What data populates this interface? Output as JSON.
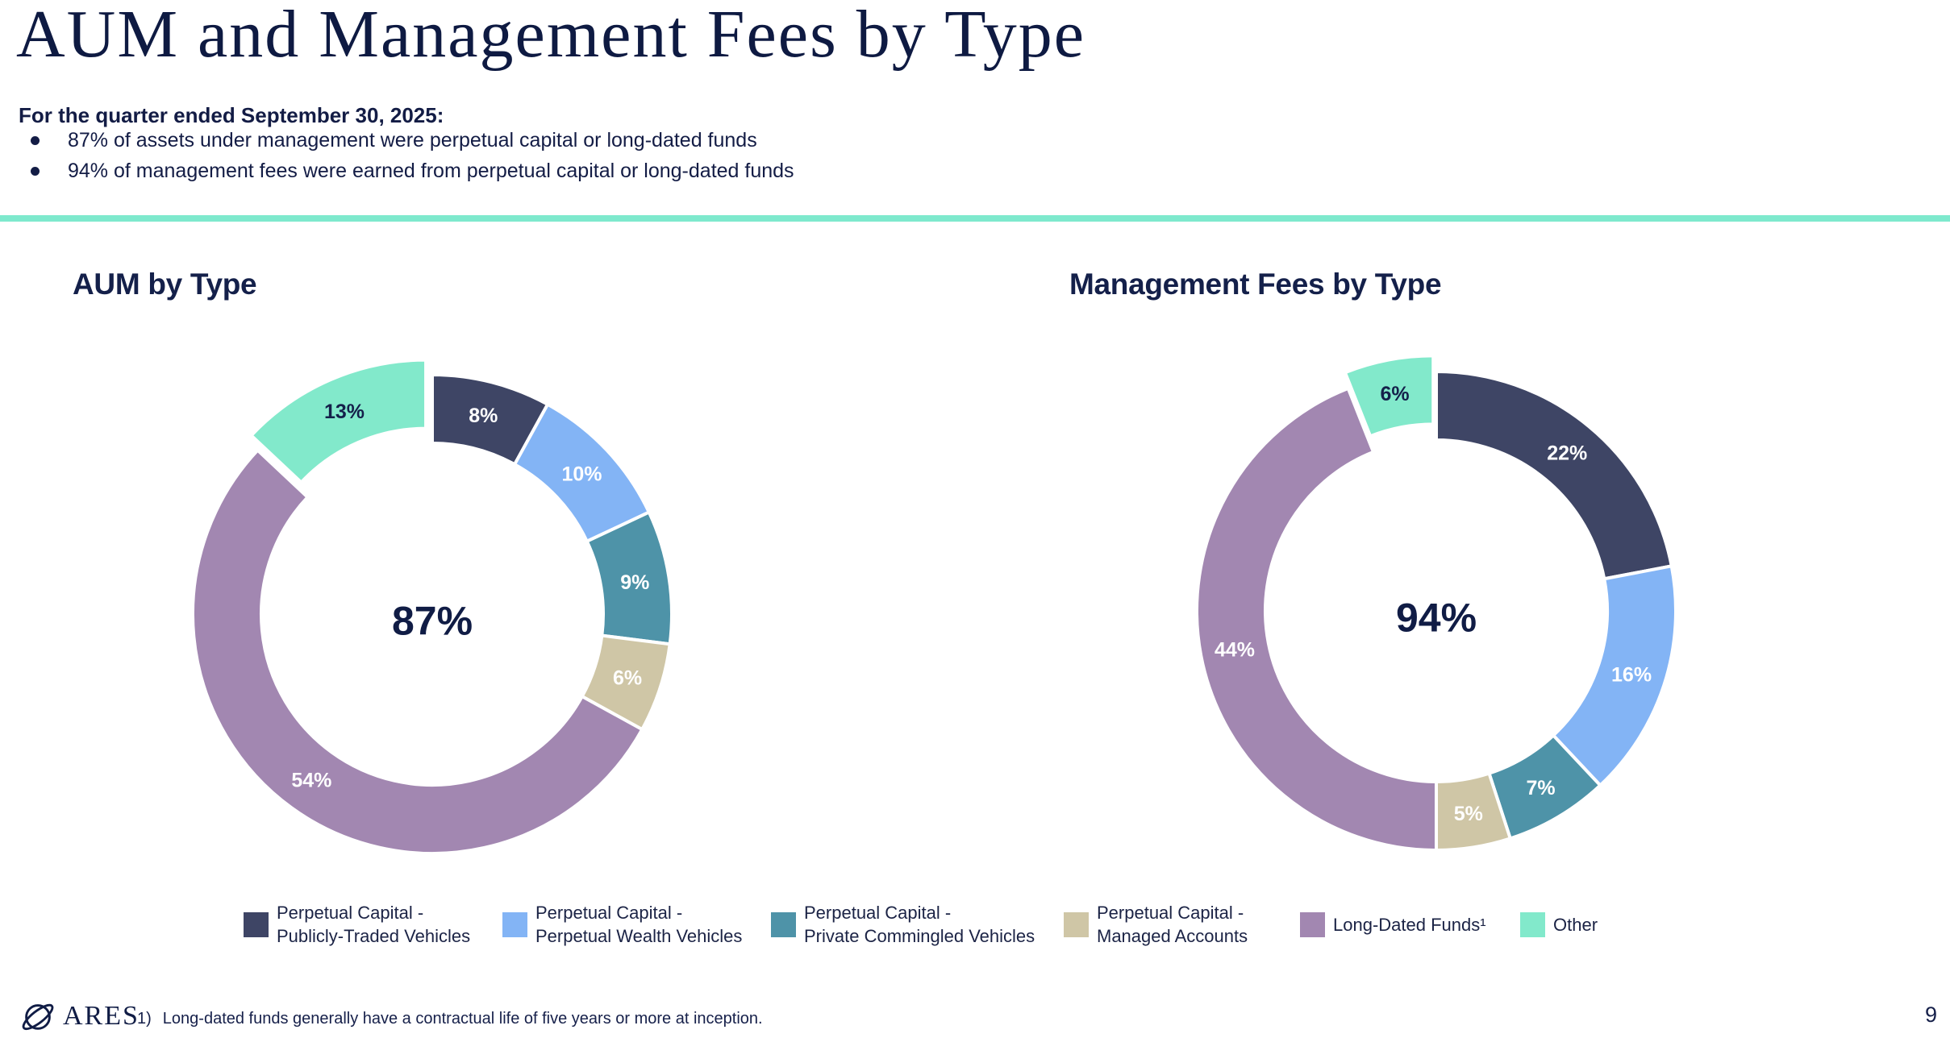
{
  "page": {
    "title": "AUM and Management Fees by Type",
    "intro": {
      "heading": "For the quarter ended September 30, 2025:",
      "bullets": [
        "87% of assets under management were perpetual capital or long-dated funds",
        "94% of management fees were earned from perpetual capital or long-dated funds"
      ]
    }
  },
  "colors": {
    "divider_accent": "#7ee9cd",
    "heading_text": "#0e1a42",
    "body_text": "#131c45",
    "slice_navy": "#3e4565",
    "slice_blue": "#83b4f5",
    "slice_teal": "#4e93a8",
    "slice_tan": "#cfc6a6",
    "slice_purple": "#a287b1",
    "slice_mint": "#82e9cb"
  },
  "chart_data": [
    {
      "type": "pie",
      "title": "AUM by Type",
      "center_label": "87%",
      "unit": "percent",
      "categories": [
        "Perpetual Capital - Publicly-Traded Vehicles",
        "Perpetual Capital - Perpetual Wealth Vehicles",
        "Perpetual Capital - Private Commingled Vehicles",
        "Perpetual Capital - Managed Accounts",
        "Long-Dated Funds",
        "Other"
      ],
      "values": [
        8,
        10,
        9,
        6,
        54,
        13
      ],
      "labels": [
        "8%",
        "10%",
        "9%",
        "6%",
        "54%",
        "13%"
      ],
      "colors": [
        "#3e4565",
        "#83b4f5",
        "#4e93a8",
        "#cfc6a6",
        "#a287b1",
        "#82e9cb"
      ],
      "label_colors": [
        "#ffffff",
        "#ffffff",
        "#ffffff",
        "#ffffff",
        "#ffffff",
        "#14204a"
      ],
      "exploded_index": 5,
      "start_angle_deg": 0,
      "legend_position": "bottom"
    },
    {
      "type": "pie",
      "title": "Management Fees by Type",
      "center_label": "94%",
      "unit": "percent",
      "categories": [
        "Perpetual Capital - Publicly-Traded Vehicles",
        "Perpetual Capital - Perpetual Wealth Vehicles",
        "Perpetual Capital - Private Commingled Vehicles",
        "Perpetual Capital - Managed Accounts",
        "Long-Dated Funds",
        "Other"
      ],
      "values": [
        22,
        16,
        7,
        5,
        44,
        6
      ],
      "labels": [
        "22%",
        "16%",
        "7%",
        "5%",
        "44%",
        "6%"
      ],
      "colors": [
        "#3e4565",
        "#83b4f5",
        "#4e93a8",
        "#cfc6a6",
        "#a287b1",
        "#82e9cb"
      ],
      "label_colors": [
        "#ffffff",
        "#ffffff",
        "#ffffff",
        "#ffffff",
        "#ffffff",
        "#14204a"
      ],
      "exploded_index": 5,
      "start_angle_deg": 0,
      "legend_position": "bottom"
    }
  ],
  "legend": {
    "items": [
      {
        "line1": "Perpetual Capital -",
        "line2": "Publicly-Traded Vehicles",
        "color": "#3e4565"
      },
      {
        "line1": "Perpetual Capital -",
        "line2": "Perpetual Wealth Vehicles",
        "color": "#83b4f5"
      },
      {
        "line1": "Perpetual Capital -",
        "line2": "Private Commingled Vehicles",
        "color": "#4e93a8"
      },
      {
        "line1": "Perpetual Capital -",
        "line2": "Managed Accounts",
        "color": "#cfc6a6"
      },
      {
        "line1": "Long-Dated Funds¹",
        "line2": "",
        "color": "#a287b1"
      },
      {
        "line1": "Other",
        "line2": "",
        "color": "#82e9cb"
      }
    ]
  },
  "footer": {
    "logo_text": "ARES",
    "footnote_marker": "1)",
    "footnote_text": "Long-dated funds generally have a contractual life of five years or more at inception.",
    "page_number": "9"
  }
}
